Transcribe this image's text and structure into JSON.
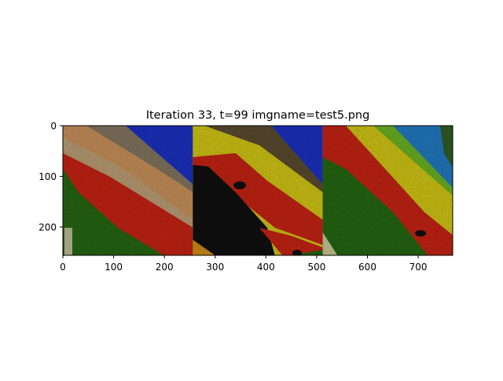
{
  "chart_data": {
    "type": "image",
    "title": "Iteration 33, t=99 imgname=test5.png",
    "xlabel": "",
    "ylabel": "",
    "xlim": [
      0,
      768
    ],
    "ylim": [
      256,
      0
    ],
    "x_ticks": [
      0,
      100,
      200,
      300,
      400,
      500,
      600,
      700
    ],
    "y_ticks": [
      0,
      100,
      200
    ],
    "grid": false,
    "panels": [
      {
        "x_range": [
          0,
          256
        ],
        "dominant_colors": [
          "#e8a96a",
          "#e52b1c",
          "#2f7a1a",
          "#1f3de0",
          "#8a7f6a"
        ]
      },
      {
        "x_range": [
          256,
          512
        ],
        "dominant_colors": [
          "#f2e51e",
          "#e52b1c",
          "#151515",
          "#1f3de0",
          "#2f7a1a"
        ]
      },
      {
        "x_range": [
          512,
          768
        ],
        "dominant_colors": [
          "#e52b1c",
          "#f2e51e",
          "#2f7a1a",
          "#2b8fe0",
          "#7fd02a"
        ]
      }
    ]
  }
}
